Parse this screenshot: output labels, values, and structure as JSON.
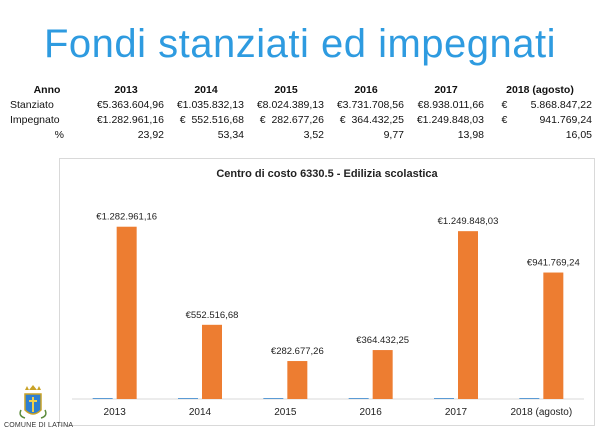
{
  "title": "Fondi stanziati ed impegnati",
  "table": {
    "header": [
      "Anno",
      "2013",
      "2014",
      "2015",
      "2016",
      "2017",
      "2018 (agosto)"
    ],
    "rows": [
      {
        "label": "Stanziato",
        "cells": [
          "€5.363.604,96",
          "€1.035.832,13",
          "€8.024.389,13",
          "€3.731.708,56",
          "€8.938.011,66",
          "€        5.868.847,22"
        ]
      },
      {
        "label": "Impegnato",
        "cells": [
          "€1.282.961,16",
          "€  552.516,68",
          "€  282.677,26",
          "€  364.432,25",
          "€1.249.848,03",
          "€           941.769,24"
        ]
      },
      {
        "label": "%",
        "cells": [
          "23,92",
          "53,34",
          "3,52",
          "9,77",
          "13,98",
          "16,05"
        ]
      }
    ]
  },
  "chart_data": {
    "type": "bar",
    "title": "Centro di costo 6330.5 - Edilizia scolastica",
    "categories": [
      "2013",
      "2014",
      "2015",
      "2016",
      "2017",
      "2018 (agosto)"
    ],
    "series": [
      {
        "values": [
          0,
          0,
          0,
          0,
          0,
          0
        ],
        "color": "#5b9bd5"
      },
      {
        "values": [
          1282961.16,
          552516.68,
          282677.26,
          364432.25,
          1249848.03,
          941769.24
        ],
        "color": "#ed7d31"
      }
    ],
    "data_labels": [
      "€1.282.961,16",
      "€552.516,68",
      "€282.677,26",
      "€364.432,25",
      "€1.249.848,03",
      "€941.769,24"
    ],
    "ylim": [
      0,
      1400000
    ],
    "grid": false,
    "legend": "none"
  },
  "logo": {
    "caption": "COMUNE DI LATINA",
    "icon": "coat-of-arms-icon"
  }
}
